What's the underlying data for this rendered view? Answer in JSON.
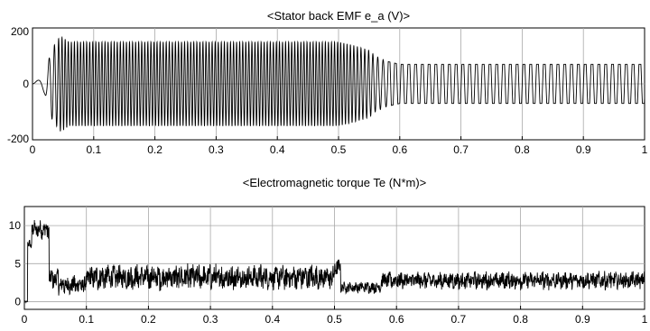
{
  "chart_data": [
    {
      "type": "line",
      "title": "<Stator back EMF e_a (V)>",
      "xlabel": "",
      "ylabel": "",
      "xlim": [
        0,
        1
      ],
      "ylim": [
        -200,
        200
      ],
      "xticks": [
        0,
        0.1,
        0.2,
        0.3,
        0.4,
        0.5,
        0.6,
        0.7,
        0.8,
        0.9,
        1
      ],
      "xtick_labels": [
        "0",
        "0.1",
        "0.2",
        "0.3",
        "0.4",
        "0.5",
        "0.6",
        "0.7",
        "0.8",
        "0.9",
        "1"
      ],
      "yticks": [
        -200,
        0,
        200
      ],
      "ytick_labels": [
        "-200",
        "0",
        "200"
      ],
      "grid": true,
      "series": [
        {
          "color": "#000000",
          "description_points": {
            "x": [
              0,
              0.01,
              0.02,
              0.025,
              0.03,
              0.045,
              0.05,
              0.06,
              0.1,
              0.5,
              0.52,
              0.55,
              0.56,
              0.58,
              0.6,
              1.0
            ],
            "amplitude": [
              0,
              15,
              35,
              70,
              120,
              170,
              165,
              150,
              150,
              150,
              140,
              120,
              100,
              80,
              70,
              70
            ],
            "period": [
              0.03,
              0.03,
              0.02,
              0.012,
              0.009,
              0.0055,
              0.0052,
              0.005,
              0.005,
              0.005,
              0.0055,
              0.0065,
              0.008,
              0.01,
              0.011,
              0.0112
            ]
          }
        }
      ]
    },
    {
      "type": "line",
      "title": "<Electromagnetic torque Te (N*m)>",
      "xlabel": "",
      "ylabel": "",
      "xlim": [
        0,
        1
      ],
      "ylim": [
        -1,
        12.5
      ],
      "xticks": [
        0,
        0.1,
        0.2,
        0.3,
        0.4,
        0.5,
        0.6,
        0.7,
        0.8,
        0.9,
        1
      ],
      "xtick_labels": [
        "0",
        "0.1",
        "0.2",
        "0.3",
        "0.4",
        "0.5",
        "0.6",
        "0.7",
        "0.8",
        "0.9",
        "1"
      ],
      "yticks": [
        0,
        5,
        10
      ],
      "ytick_labels": [
        "0",
        "5",
        "10"
      ],
      "grid": true,
      "series": [
        {
          "color": "#000000",
          "segments": [
            {
              "x0": 0.0,
              "x1": 0.005,
              "mean": 0.0,
              "ripple": 0.2
            },
            {
              "x0": 0.005,
              "x1": 0.012,
              "mean": 7.5,
              "ripple": 1.0
            },
            {
              "x0": 0.012,
              "x1": 0.04,
              "mean": 9.5,
              "ripple": 2.0
            },
            {
              "x0": 0.04,
              "x1": 0.055,
              "mean": 3.0,
              "ripple": 2.0
            },
            {
              "x0": 0.055,
              "x1": 0.1,
              "mean": 2.2,
              "ripple": 2.0
            },
            {
              "x0": 0.1,
              "x1": 0.5,
              "mean": 3.2,
              "ripple": 2.6
            },
            {
              "x0": 0.5,
              "x1": 0.51,
              "mean": 4.5,
              "ripple": 2.0
            },
            {
              "x0": 0.51,
              "x1": 0.575,
              "mean": 1.9,
              "ripple": 1.2
            },
            {
              "x0": 0.575,
              "x1": 1.0,
              "mean": 2.8,
              "ripple": 1.8
            }
          ]
        }
      ]
    }
  ]
}
